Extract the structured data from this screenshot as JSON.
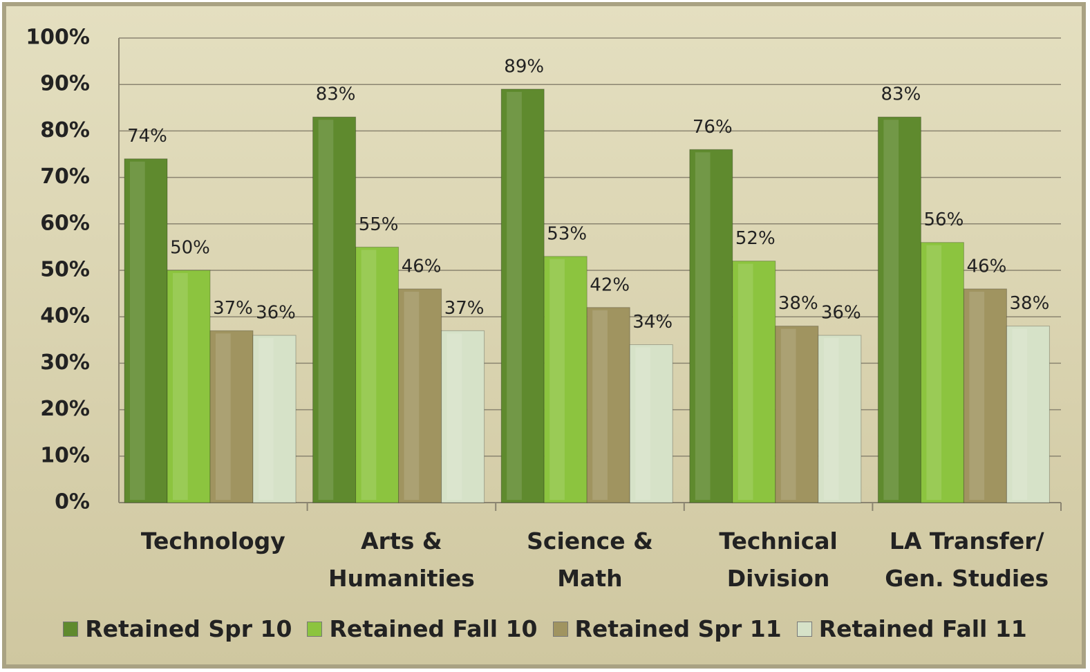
{
  "chart_data": {
    "type": "bar",
    "categories": [
      "Technology",
      "Arts & Humanities",
      "Science & Math",
      "Technical Division",
      "LA Transfer/ Gen. Studies"
    ],
    "series": [
      {
        "name": "Retained Spr 10",
        "color": "#5f8a2e",
        "values": [
          74,
          83,
          89,
          76,
          83
        ],
        "value_labels": [
          "74%",
          "83%",
          "89%",
          "76%",
          "83%"
        ]
      },
      {
        "name": "Retained Fall 10",
        "color": "#8cc43f",
        "values": [
          50,
          55,
          53,
          52,
          56
        ],
        "value_labels": [
          "50%",
          "55%",
          "53%",
          "52%",
          "56%"
        ]
      },
      {
        "name": "Retained Spr 11",
        "color": "#a09460",
        "values": [
          37,
          46,
          42,
          38,
          46
        ],
        "value_labels": [
          "37%",
          "46%",
          "42%",
          "38%",
          "46%"
        ]
      },
      {
        "name": "Retained Fall 11",
        "color": "#d6e2c8",
        "values": [
          36,
          37,
          34,
          36,
          38
        ],
        "value_labels": [
          "36%",
          "37%",
          "34%",
          "36%",
          "38%"
        ]
      }
    ],
    "ylim": [
      0,
      100
    ],
    "yticks": [
      {
        "value": 0,
        "label": "0%"
      },
      {
        "value": 10,
        "label": "10%"
      },
      {
        "value": 20,
        "label": "20%"
      },
      {
        "value": 30,
        "label": "30%"
      },
      {
        "value": 40,
        "label": "40%"
      },
      {
        "value": 50,
        "label": "50%"
      },
      {
        "value": 60,
        "label": "60%"
      },
      {
        "value": 70,
        "label": "70%"
      },
      {
        "value": 80,
        "label": "80%"
      },
      {
        "value": 90,
        "label": "90%"
      },
      {
        "value": 100,
        "label": "100%"
      }
    ],
    "grid": true,
    "legend": "bottom"
  }
}
